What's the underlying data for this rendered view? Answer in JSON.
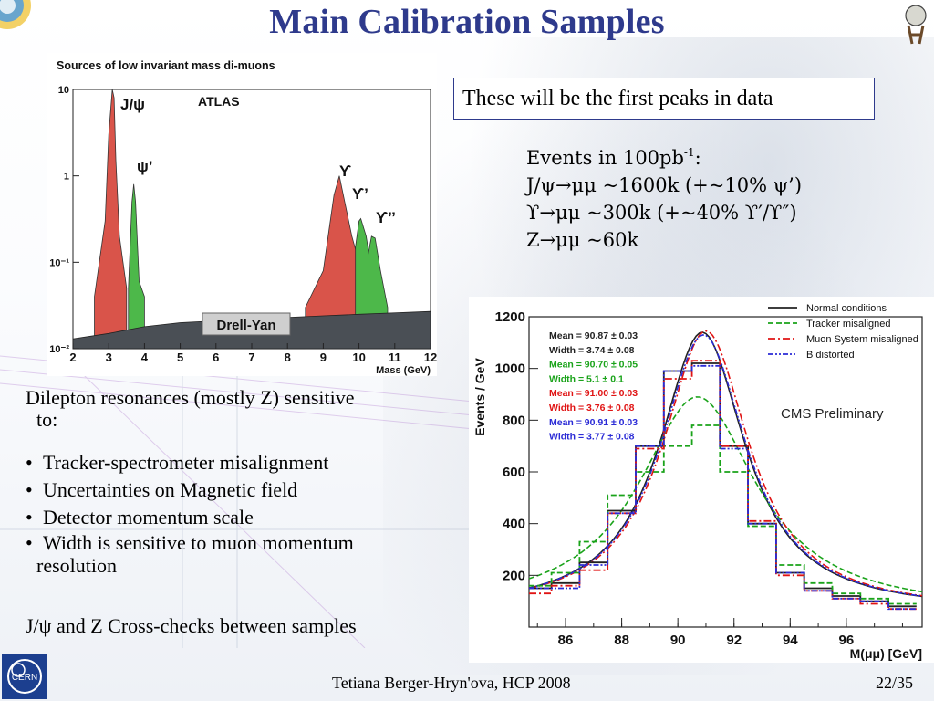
{
  "slide": {
    "title": "Main Calibration Samples",
    "footer_author": "Tetiana Berger-Hryn'ova, HCP 2008",
    "page_number": "22/35"
  },
  "callout": {
    "text": "These will be the first peaks in data"
  },
  "events": {
    "line1_prefix": "Events in 100pb",
    "line1_sup": "-1",
    "line1_suffix": ":",
    "line2": "J/ψ→μμ ~1600k (+~10% ψ’)",
    "line3": "ϒ→μμ ~300k (+~40% ϒ′/ϒ″)",
    "line4": "Z→μμ ~60k"
  },
  "left_text": {
    "intro_line1": "Dilepton resonances (mostly Z) sensitive",
    "intro_line2": "to:",
    "bullets": [
      "Tracker-spectrometer misalignment",
      "Uncertainties on Magnetic field",
      "Detector momentum scale",
      "Width is sensitive to muon momentum"
    ],
    "bullet4_cont": "resolution",
    "crosscheck": "J/ψ and Z Cross-checks between samples"
  },
  "chart_data": [
    {
      "type": "area",
      "title": "Sources of low invariant mass di-muons",
      "xlabel": "Mass (GeV)",
      "ylabel": "",
      "yscale": "log",
      "xlim": [
        2,
        12
      ],
      "ylim": [
        0.01,
        10
      ],
      "x_ticks": [
        "2",
        "3",
        "4",
        "5",
        "6",
        "7",
        "8",
        "9",
        "10",
        "11",
        "12"
      ],
      "y_ticks": [
        "10",
        "1",
        "10⁻¹",
        "10⁻²"
      ],
      "labels": {
        "experiment": "ATLAS",
        "jpsi": "J/ψ",
        "psi2s": "ψ’",
        "ups1": "ϒ",
        "ups2": "ϒ’",
        "ups3": "ϒ’’",
        "dy": "Drell-Yan"
      },
      "colors": {
        "resonance_red": "#d9544a",
        "resonance_green": "#4db84a",
        "drell_yan": "#4a4f55"
      },
      "series": [
        {
          "name": "Drell-Yan",
          "x": [
            2,
            3,
            4,
            5,
            6,
            7,
            8,
            9,
            10,
            11,
            12
          ],
          "values": [
            0.013,
            0.015,
            0.018,
            0.02,
            0.021,
            0.022,
            0.023,
            0.024,
            0.025,
            0.026,
            0.027
          ]
        },
        {
          "name": "J/ψ",
          "x": [
            2.6,
            2.9,
            3.0,
            3.1,
            3.15,
            3.2,
            3.3,
            3.5
          ],
          "values": [
            0.04,
            0.3,
            3.0,
            10,
            8,
            1.5,
            0.2,
            0.05
          ]
        },
        {
          "name": "ψ’",
          "x": [
            3.55,
            3.65,
            3.7,
            3.75,
            3.85,
            4.0
          ],
          "values": [
            0.05,
            0.5,
            0.8,
            0.5,
            0.06,
            0.04
          ]
        },
        {
          "name": "ϒ",
          "x": [
            8.5,
            9.0,
            9.3,
            9.45,
            9.6,
            9.8,
            10.0,
            10.5
          ],
          "values": [
            0.03,
            0.08,
            0.6,
            1.0,
            0.5,
            0.2,
            0.1,
            0.035
          ]
        },
        {
          "name": "ϒ’",
          "x": [
            9.9,
            10.0,
            10.05,
            10.2,
            10.4,
            10.6
          ],
          "values": [
            0.15,
            0.3,
            0.32,
            0.2,
            0.06,
            0.03
          ]
        },
        {
          "name": "ϒ’’",
          "x": [
            10.25,
            10.35,
            10.45,
            10.6,
            10.8
          ],
          "values": [
            0.12,
            0.2,
            0.19,
            0.08,
            0.03
          ]
        }
      ]
    },
    {
      "type": "line",
      "title": "CMS Preliminary",
      "xlabel": "M(μμ) [GeV]",
      "ylabel": "Events / GeV",
      "xlim": [
        84.7,
        98.7
      ],
      "ylim": [
        0,
        1200
      ],
      "x_ticks": [
        "86",
        "88",
        "90",
        "92",
        "94",
        "96"
      ],
      "y_ticks": [
        "200",
        "400",
        "600",
        "800",
        "1000",
        "1200"
      ],
      "categories_x": [
        85,
        86,
        87,
        88,
        89,
        90,
        91,
        92,
        93,
        94,
        95,
        96,
        97,
        98
      ],
      "legend_position": "top-right",
      "legend": [
        {
          "name": "Normal conditions",
          "color": "#222222",
          "style": "solid"
        },
        {
          "name": "Tracker misaligned",
          "color": "#1aa31a",
          "style": "dashed"
        },
        {
          "name": "Muon System misaligned",
          "color": "#e01414",
          "style": "dashdot"
        },
        {
          "name": "B distorted",
          "color": "#2b2bd6",
          "style": "dashdotdot"
        }
      ],
      "stats": [
        {
          "label": "Mean = 90.87 ± 0.03",
          "color": "#222222"
        },
        {
          "label": "Width = 3.74 ± 0.08",
          "color": "#222222"
        },
        {
          "label": "Mean = 90.70 ± 0.05",
          "color": "#1aa31a"
        },
        {
          "label": "Width = 5.1 ± 0.1",
          "color": "#1aa31a"
        },
        {
          "label": "Mean = 91.00 ± 0.03",
          "color": "#e01414"
        },
        {
          "label": "Width = 3.76 ± 0.08",
          "color": "#e01414"
        },
        {
          "label": "Mean = 90.91 ± 0.03",
          "color": "#2b2bd6"
        },
        {
          "label": "Width = 3.77 ± 0.08",
          "color": "#2b2bd6"
        }
      ],
      "series": [
        {
          "name": "Normal conditions",
          "values": [
            150,
            170,
            250,
            450,
            700,
            990,
            1020,
            700,
            400,
            210,
            150,
            120,
            100,
            80
          ]
        },
        {
          "name": "Tracker misaligned",
          "values": [
            160,
            210,
            330,
            510,
            600,
            700,
            780,
            600,
            390,
            240,
            170,
            130,
            110,
            90
          ]
        },
        {
          "name": "Muon System misaligned",
          "values": [
            130,
            160,
            220,
            440,
            690,
            960,
            1030,
            700,
            410,
            200,
            140,
            110,
            90,
            70
          ]
        },
        {
          "name": "B distorted",
          "values": [
            150,
            150,
            240,
            440,
            700,
            990,
            1010,
            690,
            400,
            210,
            140,
            110,
            100,
            70
          ]
        }
      ],
      "fit_peaks": [
        {
          "name": "Normal conditions",
          "mean": 90.87,
          "width": 3.74,
          "peak": 1080
        },
        {
          "name": "Tracker misaligned",
          "mean": 90.7,
          "width": 5.1,
          "peak": 830
        },
        {
          "name": "Muon System misaligned",
          "mean": 91.0,
          "width": 3.76,
          "peak": 1085
        },
        {
          "name": "B distorted",
          "mean": 90.91,
          "width": 3.77,
          "peak": 1070
        }
      ]
    }
  ]
}
